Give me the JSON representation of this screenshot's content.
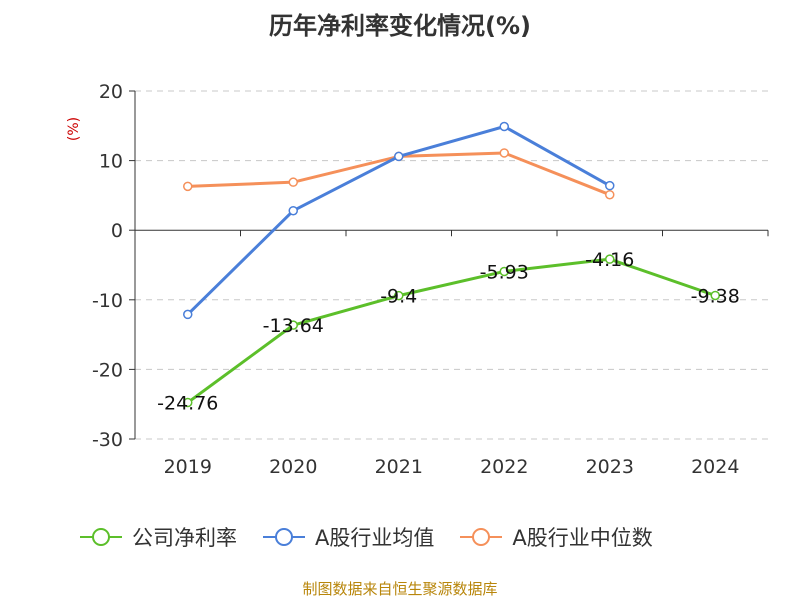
{
  "chart_data": {
    "type": "line",
    "title": "历年净利率变化情况(%)",
    "ylabel": "(%)",
    "xlabel": "",
    "categories": [
      "2019",
      "2020",
      "2021",
      "2022",
      "2023",
      "2024"
    ],
    "ylim": [
      -30,
      20
    ],
    "yticks": [
      20,
      10,
      0,
      -10,
      -20,
      -30
    ],
    "grid": true,
    "legend_position": "bottom",
    "series": [
      {
        "name": "公司净利率",
        "color": "#5cbf2a",
        "values": [
          -24.76,
          -13.64,
          -9.4,
          -5.93,
          -4.16,
          -9.38
        ],
        "labels": [
          "-24.76",
          "-13.64",
          "-9.4",
          "-5.93",
          "-4.16",
          "-9.38"
        ]
      },
      {
        "name": "A股行业均值",
        "color": "#4a7fd9",
        "values": [
          -12.1,
          2.8,
          10.6,
          14.9,
          6.4,
          null
        ]
      },
      {
        "name": "A股行业中位数",
        "color": "#f5905a",
        "values": [
          6.3,
          6.9,
          10.6,
          11.1,
          5.1,
          null
        ]
      }
    ]
  },
  "source": "制图数据来自恒生聚源数据库"
}
